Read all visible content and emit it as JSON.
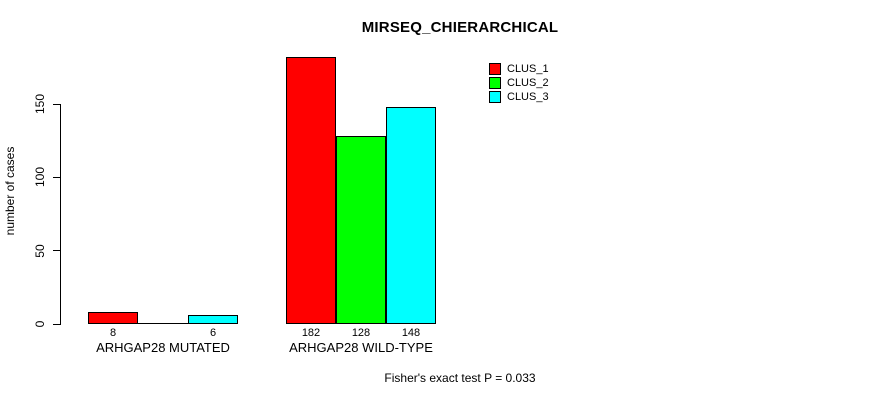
{
  "chart_data": {
    "type": "bar",
    "title": "MIRSEQ_CHIERARCHICAL",
    "ylabel": "number of cases",
    "xlabel": "",
    "yticks": [
      0,
      50,
      100,
      150
    ],
    "ylim": [
      0,
      182
    ],
    "grid": false,
    "legend_position": "top-right",
    "groups": [
      "ARHGAP28 MUTATED",
      "ARHGAP28 WILD-TYPE"
    ],
    "series": [
      {
        "name": "CLUS_1",
        "color": "#FF0000",
        "values": [
          8,
          182
        ]
      },
      {
        "name": "CLUS_2",
        "color": "#00FF00",
        "values": [
          0,
          128
        ]
      },
      {
        "name": "CLUS_3",
        "color": "#00FFFF",
        "values": [
          6,
          148
        ]
      }
    ],
    "bar_value_labels": [
      [
        "8",
        "",
        "6"
      ],
      [
        "182",
        "128",
        "148"
      ]
    ],
    "annotation": "Fisher's exact test P = 0.033",
    "axis_color": "#000000",
    "background_color": "#FFFFFF"
  }
}
